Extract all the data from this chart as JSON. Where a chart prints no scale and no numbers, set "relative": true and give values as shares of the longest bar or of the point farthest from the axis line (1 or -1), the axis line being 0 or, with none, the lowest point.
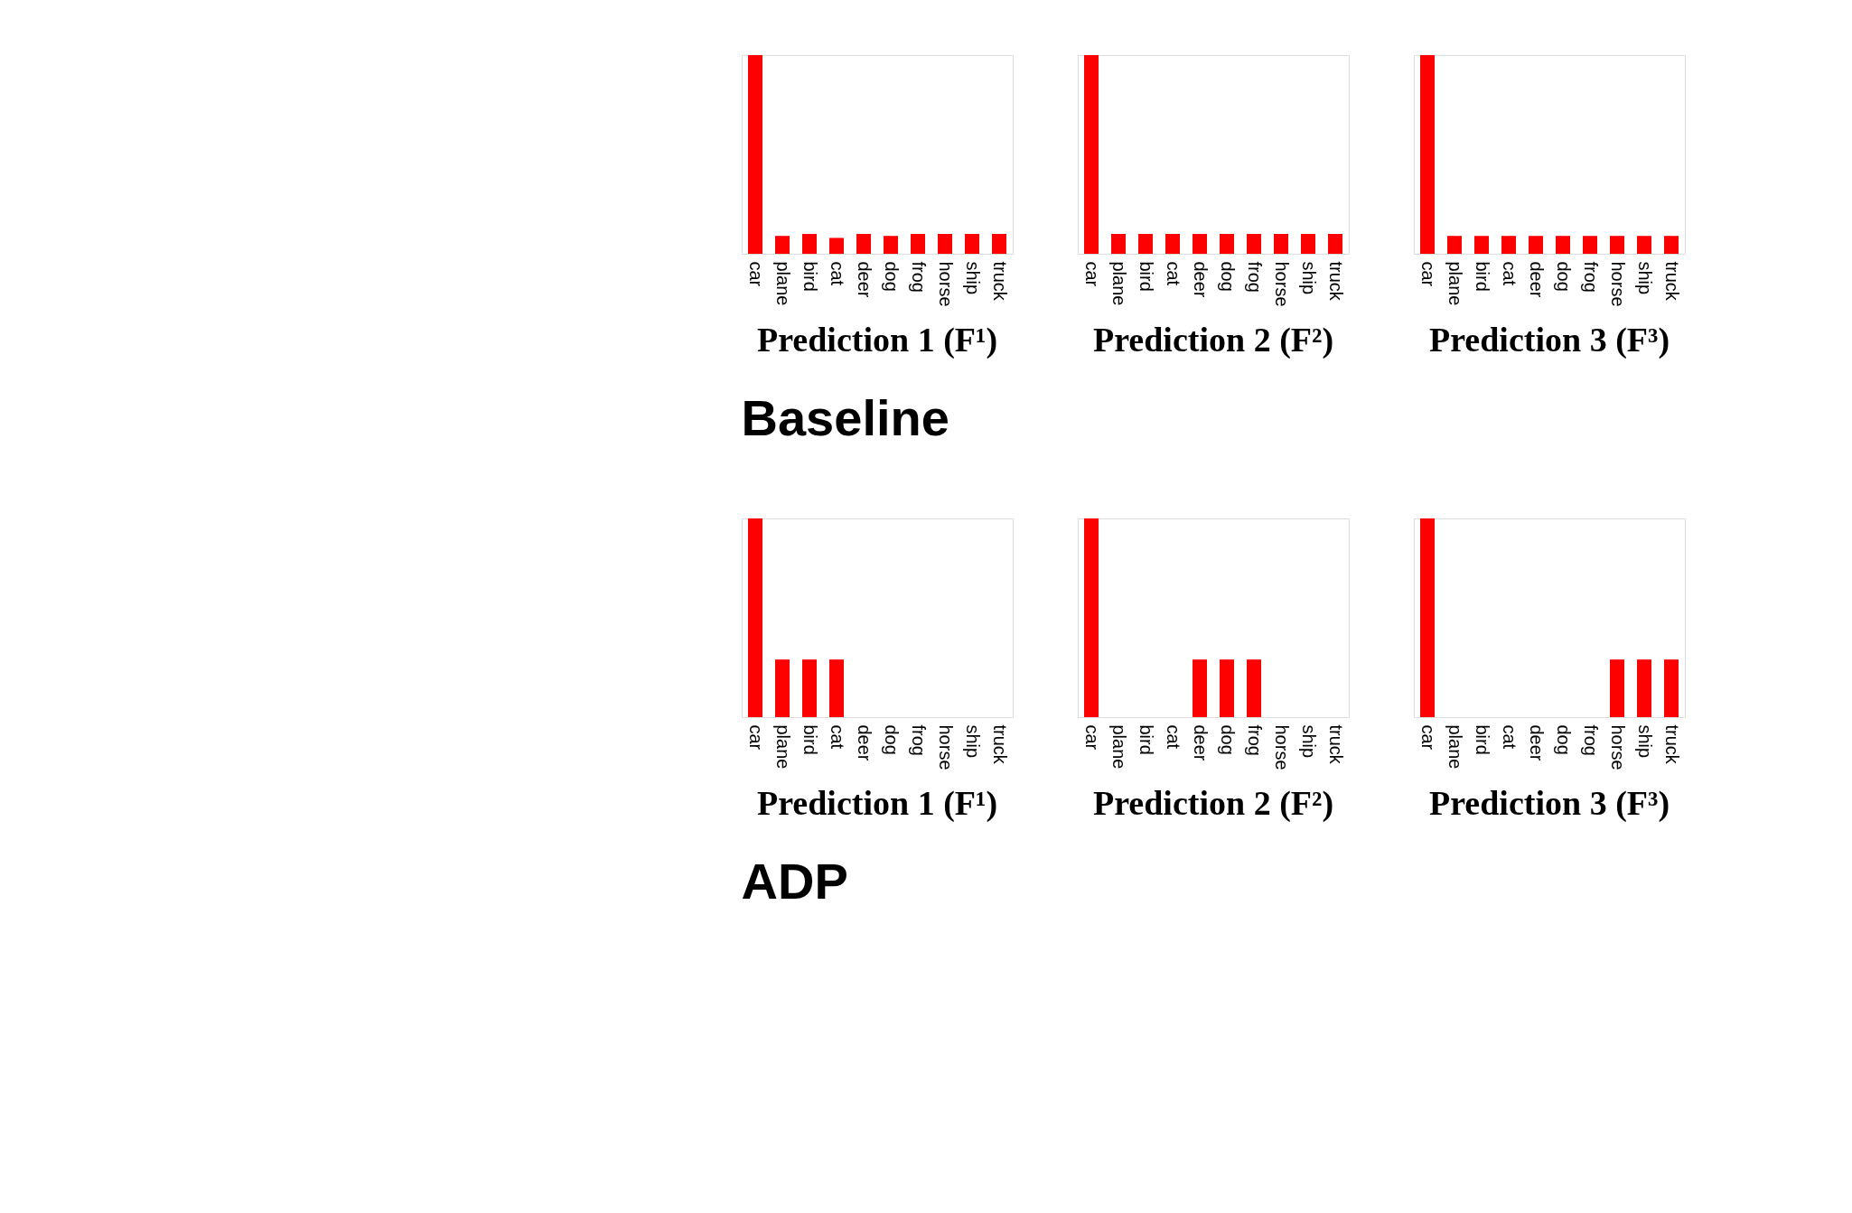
{
  "chart_data": [
    {
      "type": "bar",
      "relative": true,
      "title": "Prediction 1 (F¹)",
      "categories": [
        "car",
        "plane",
        "bird",
        "cat",
        "deer",
        "dog",
        "frog",
        "horse",
        "ship",
        "truck"
      ],
      "color": "#ff0000",
      "values": [
        1,
        0.09,
        0.1,
        0.08,
        0.1,
        0.09,
        0.1,
        0.1,
        0.1,
        0.1
      ]
    },
    {
      "type": "bar",
      "relative": true,
      "title": "Prediction 2 (F²)",
      "annotations": [
        "Baseline"
      ],
      "categories": [
        "car",
        "plane",
        "bird",
        "cat",
        "deer",
        "dog",
        "frog",
        "horse",
        "ship",
        "truck"
      ],
      "color": "#ff0000",
      "values": [
        1,
        0.1,
        0.1,
        0.1,
        0.1,
        0.1,
        0.1,
        0.1,
        0.1,
        0.1
      ]
    },
    {
      "type": "bar",
      "relative": true,
      "title": "Prediction 3 (F³)",
      "categories": [
        "car",
        "plane",
        "bird",
        "cat",
        "deer",
        "dog",
        "frog",
        "horse",
        "ship",
        "truck"
      ],
      "color": "#ff0000",
      "values": [
        1,
        0.09,
        0.09,
        0.09,
        0.09,
        0.09,
        0.09,
        0.09,
        0.09,
        0.09
      ]
    },
    {
      "type": "bar",
      "relative": true,
      "title": "Prediction 1 (F¹)",
      "categories": [
        "car",
        "plane",
        "bird",
        "cat",
        "deer",
        "dog",
        "frog",
        "horse",
        "ship",
        "truck"
      ],
      "color": "#ff0000",
      "values": [
        1,
        0.29,
        0.29,
        0.29,
        0,
        0,
        0,
        0,
        0,
        0
      ]
    },
    {
      "type": "bar",
      "relative": true,
      "title": "Prediction 2 (F²)",
      "annotations": [
        "ADP"
      ],
      "categories": [
        "car",
        "plane",
        "bird",
        "cat",
        "deer",
        "dog",
        "frog",
        "horse",
        "ship",
        "truck"
      ],
      "color": "#ff0000",
      "values": [
        1,
        0,
        0,
        0,
        0.29,
        0.29,
        0.29,
        0,
        0,
        0
      ]
    },
    {
      "type": "bar",
      "relative": true,
      "title": "Prediction 3 (F³)",
      "categories": [
        "car",
        "plane",
        "bird",
        "cat",
        "deer",
        "dog",
        "frog",
        "horse",
        "ship",
        "truck"
      ],
      "color": "#ff0000",
      "values": [
        1,
        0,
        0,
        0,
        0,
        0,
        0,
        0.29,
        0.29,
        0.29
      ]
    }
  ]
}
